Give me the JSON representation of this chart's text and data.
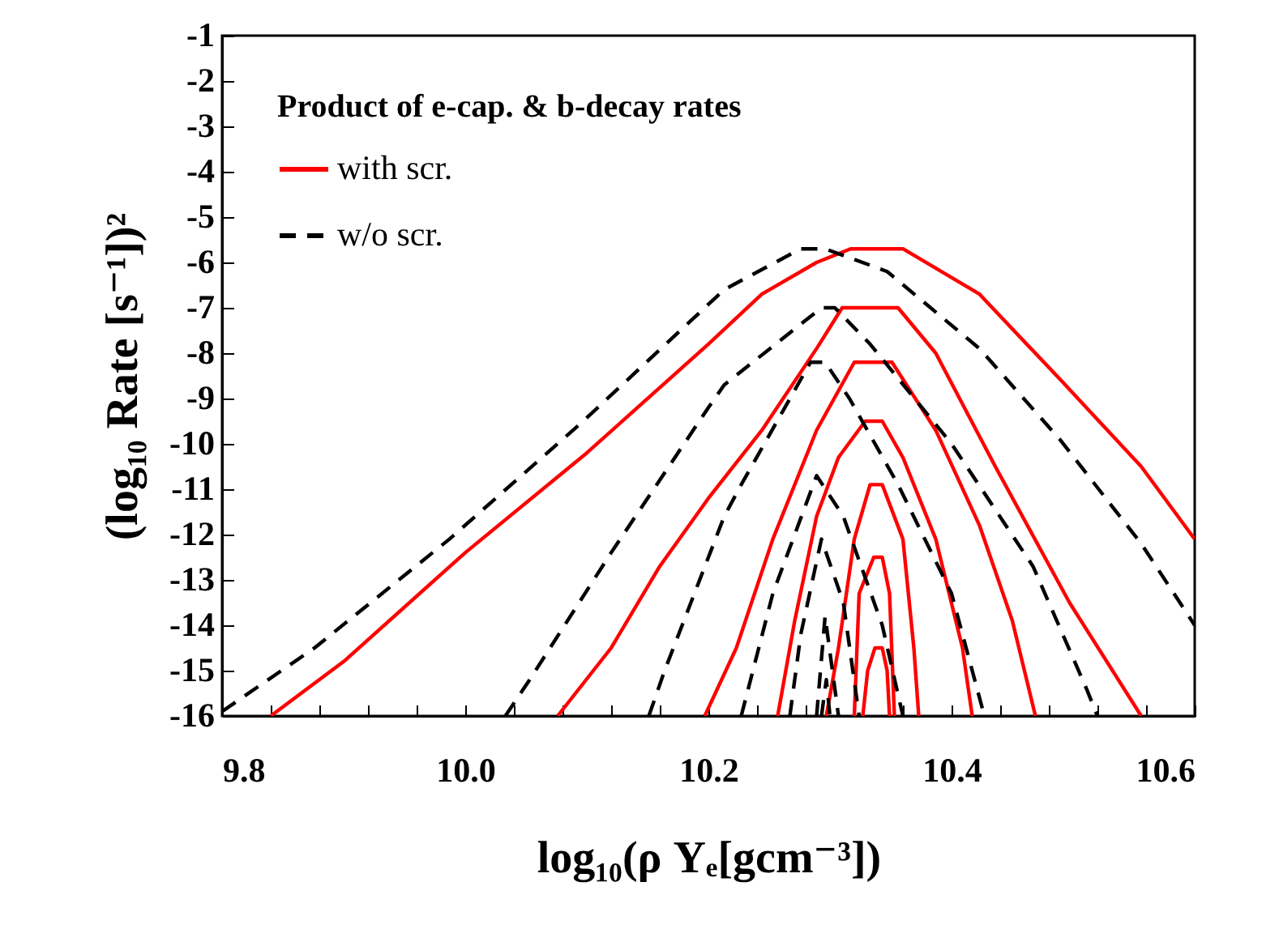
{
  "chart_data": {
    "type": "line",
    "xlabel": "log₁₀(ρ Yₑ[gcm⁻³])",
    "ylabel": "(log₁₀ Rate [s⁻¹])²",
    "legend_title": "Product of e-cap. & b-decay rates",
    "legend": "top left",
    "xlim": [
      9.8,
      10.6
    ],
    "ylim": [
      -16,
      -1
    ],
    "xticks": [
      {
        "value": 9.8,
        "label": "9.8"
      },
      {
        "value": 9.84,
        "label": null
      },
      {
        "value": 9.88,
        "label": null
      },
      {
        "value": 9.92,
        "label": null
      },
      {
        "value": 9.96,
        "label": null
      },
      {
        "value": 10.0,
        "label": "10.0"
      },
      {
        "value": 10.04,
        "label": null
      },
      {
        "value": 10.08,
        "label": null
      },
      {
        "value": 10.12,
        "label": null
      },
      {
        "value": 10.16,
        "label": null
      },
      {
        "value": 10.2,
        "label": "10.2"
      },
      {
        "value": 10.24,
        "label": null
      },
      {
        "value": 10.28,
        "label": null
      },
      {
        "value": 10.32,
        "label": null
      },
      {
        "value": 10.36,
        "label": null
      },
      {
        "value": 10.4,
        "label": "10.4"
      },
      {
        "value": 10.44,
        "label": null
      },
      {
        "value": 10.48,
        "label": null
      },
      {
        "value": 10.52,
        "label": null
      },
      {
        "value": 10.56,
        "label": null
      },
      {
        "value": 10.6,
        "label": "10.6"
      }
    ],
    "yticks": [
      -1,
      -2,
      -3,
      -4,
      -5,
      -6,
      -7,
      -8,
      -9,
      -10,
      -11,
      -12,
      -13,
      -14,
      -15,
      -16
    ],
    "series": [
      {
        "name": "with scr.",
        "color": "#ff0000",
        "line_style": "solid",
        "x": [
          9.84,
          9.9,
          10.0,
          10.1,
          10.2,
          10.244,
          10.289,
          10.317,
          10.36,
          10.423,
          10.49,
          10.556,
          10.6
        ],
        "values": [
          -16,
          -14.8,
          -12.4,
          -10.2,
          -7.8,
          -6.7,
          -6.0,
          -5.7,
          -5.7,
          -6.7,
          -8.6,
          -10.5,
          -12.1
        ]
      },
      {
        "color": "#ff0000",
        "line_style": "solid",
        "x": [
          10.076,
          10.12,
          10.16,
          10.2,
          10.244,
          10.289,
          10.31,
          10.356,
          10.387,
          10.436,
          10.497,
          10.556
        ],
        "values": [
          -16,
          -14.5,
          -12.7,
          -11.2,
          -9.7,
          -7.9,
          -7.0,
          -7.0,
          -8.0,
          -10.5,
          -13.5,
          -16
        ]
      },
      {
        "color": "#ff0000",
        "line_style": "solid",
        "x": [
          10.197,
          10.223,
          10.253,
          10.289,
          10.32,
          10.351,
          10.387,
          10.423,
          10.45,
          10.469
        ],
        "values": [
          -16,
          -14.5,
          -12.1,
          -9.7,
          -8.2,
          -8.2,
          -9.7,
          -11.8,
          -13.9,
          -16
        ]
      },
      {
        "color": "#ff0000",
        "line_style": "solid",
        "x": [
          10.257,
          10.271,
          10.289,
          10.307,
          10.329,
          10.343,
          10.36,
          10.387,
          10.409,
          10.417
        ],
        "values": [
          -16,
          -13.9,
          -11.6,
          -10.3,
          -9.5,
          -9.5,
          -10.3,
          -12.1,
          -14.5,
          -16
        ]
      },
      {
        "color": "#ff0000",
        "line_style": "solid",
        "x": [
          10.297,
          10.307,
          10.32,
          10.333,
          10.343,
          10.36,
          10.369,
          10.373
        ],
        "values": [
          -16,
          -14.5,
          -12.1,
          -10.9,
          -10.9,
          -12.1,
          -14.5,
          -16
        ]
      },
      {
        "color": "#ff0000",
        "line_style": "solid",
        "x": [
          10.32,
          10.324,
          10.336,
          10.343,
          10.349,
          10.353
        ],
        "values": [
          -16,
          -13.3,
          -12.5,
          -12.5,
          -13.3,
          -16
        ]
      },
      {
        "color": "#ff0000",
        "line_style": "solid",
        "x": [
          10.327,
          10.331,
          10.337,
          10.343,
          10.347,
          10.349
        ],
        "values": [
          -16,
          -15.0,
          -14.5,
          -14.5,
          -15.0,
          -16
        ]
      },
      {
        "name": "w/o scr.",
        "color": "#000000",
        "line_style": "dashed",
        "x": [
          9.8,
          9.876,
          9.987,
          10.097,
          10.213,
          10.276,
          10.296,
          10.347,
          10.423,
          10.489,
          10.556,
          10.6
        ],
        "values": [
          -15.9,
          -14.5,
          -12.1,
          -9.5,
          -6.6,
          -5.7,
          -5.7,
          -6.2,
          -7.9,
          -9.9,
          -12.2,
          -14.0
        ]
      },
      {
        "color": "#000000",
        "line_style": "dashed",
        "x": [
          10.033,
          10.053,
          10.12,
          10.2,
          10.213,
          10.293,
          10.304,
          10.333,
          10.4,
          10.467,
          10.511,
          10.52
        ],
        "values": [
          -16,
          -15.2,
          -12.4,
          -9.2,
          -8.7,
          -7.0,
          -7.0,
          -7.8,
          -10.0,
          -12.7,
          -15.4,
          -16
        ]
      },
      {
        "color": "#000000",
        "line_style": "dashed",
        "x": [
          10.151,
          10.164,
          10.213,
          10.227,
          10.284,
          10.296,
          10.316,
          10.356,
          10.4,
          10.427
        ],
        "values": [
          -16,
          -15.0,
          -11.6,
          -10.9,
          -8.2,
          -8.2,
          -9.0,
          -10.9,
          -13.3,
          -16
        ]
      },
      {
        "color": "#000000",
        "line_style": "dashed",
        "x": [
          10.227,
          10.253,
          10.289,
          10.311,
          10.343,
          10.36
        ],
        "values": [
          -16,
          -13.3,
          -10.7,
          -11.6,
          -14.0,
          -16
        ]
      },
      {
        "color": "#000000",
        "line_style": "dashed",
        "x": [
          10.267,
          10.276,
          10.293,
          10.311,
          10.324
        ],
        "values": [
          -16,
          -14.2,
          -12.1,
          -13.5,
          -16
        ]
      },
      {
        "color": "#000000",
        "line_style": "dashed",
        "x": [
          10.289,
          10.296,
          10.307
        ],
        "values": [
          -16,
          -13.8,
          -16
        ]
      },
      {
        "color": "#000000",
        "line_style": "dashed",
        "x": [
          10.293,
          10.297,
          10.3
        ],
        "values": [
          -16,
          -15.2,
          -16
        ]
      }
    ]
  }
}
